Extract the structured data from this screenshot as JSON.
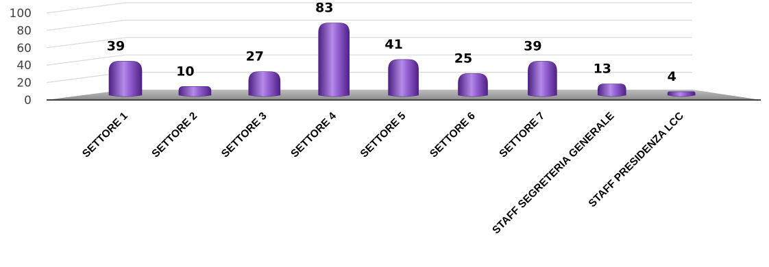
{
  "chart_data": {
    "type": "bar",
    "title": "",
    "xlabel": "",
    "ylabel": "",
    "ylim": [
      0,
      100
    ],
    "yticks": [
      0,
      20,
      40,
      60,
      80,
      100
    ],
    "grid": true,
    "legend": "none",
    "categories": [
      "SETTORE 1",
      "SETTORE 2",
      "SETTORE 3",
      "SETTORE 4",
      "SETTORE 5",
      "SETTORE 6",
      "SETTORE 7",
      "STAFF SEGRETERIA GENERALE",
      "STAFF PRESIDENZA LCC"
    ],
    "values": [
      39,
      10,
      27,
      83,
      41,
      25,
      39,
      13,
      4
    ],
    "colors": {
      "bar": "#7a3fc0",
      "bar_light": "#b58be8",
      "bar_dark": "#4e2185",
      "floor": "#a6a6a6",
      "grid": "#d9d9d9"
    }
  }
}
